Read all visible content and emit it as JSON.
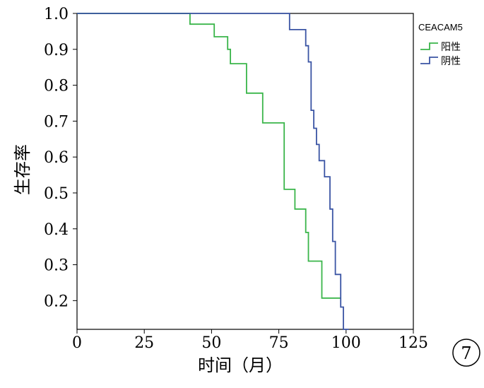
{
  "chart_data": {
    "type": "line",
    "subtype": "kaplan-meier step curve",
    "xlabel": "时间（月）",
    "ylabel": "生存率",
    "xlim": [
      0,
      125
    ],
    "ylim": [
      0.12,
      1.0
    ],
    "xticks": [
      0,
      25,
      50,
      75,
      100,
      125
    ],
    "yticks": [
      0.2,
      0.3,
      0.4,
      0.5,
      0.6,
      0.7,
      0.8,
      0.9,
      1.0
    ],
    "ytick_labels": [
      "0.2",
      "0.3",
      "0.4",
      "0.5",
      "0.6",
      "0.7",
      "0.8",
      "0.9",
      "1.0"
    ],
    "grid": false,
    "legend": {
      "title": "CEACAM5",
      "position": "right"
    },
    "series": [
      {
        "name": "阳性",
        "color": "#3ab54a",
        "x": [
          0,
          42,
          42,
          51,
          51,
          56,
          56,
          57,
          57,
          63,
          63,
          69,
          69,
          77,
          77,
          81,
          81,
          85,
          85,
          86,
          86,
          91,
          91,
          98
        ],
        "y": [
          1.0,
          1.0,
          0.97,
          0.97,
          0.935,
          0.935,
          0.9,
          0.9,
          0.86,
          0.86,
          0.778,
          0.778,
          0.695,
          0.695,
          0.51,
          0.51,
          0.455,
          0.455,
          0.39,
          0.39,
          0.31,
          0.31,
          0.207,
          0.207
        ]
      },
      {
        "name": "阴性",
        "color": "#3a54a4",
        "x": [
          0,
          79,
          79,
          85,
          85,
          86,
          86,
          87,
          87,
          88,
          88,
          89,
          89,
          90,
          90,
          92,
          92,
          94,
          94,
          95,
          95,
          96,
          96,
          98,
          98,
          99,
          99,
          101
        ],
        "y": [
          1.0,
          1.0,
          0.955,
          0.955,
          0.91,
          0.91,
          0.865,
          0.865,
          0.73,
          0.73,
          0.68,
          0.68,
          0.635,
          0.635,
          0.59,
          0.59,
          0.545,
          0.545,
          0.455,
          0.455,
          0.365,
          0.365,
          0.273,
          0.273,
          0.182,
          0.182,
          0.12,
          0.12
        ]
      }
    ]
  },
  "badge": {
    "label": "7"
  }
}
